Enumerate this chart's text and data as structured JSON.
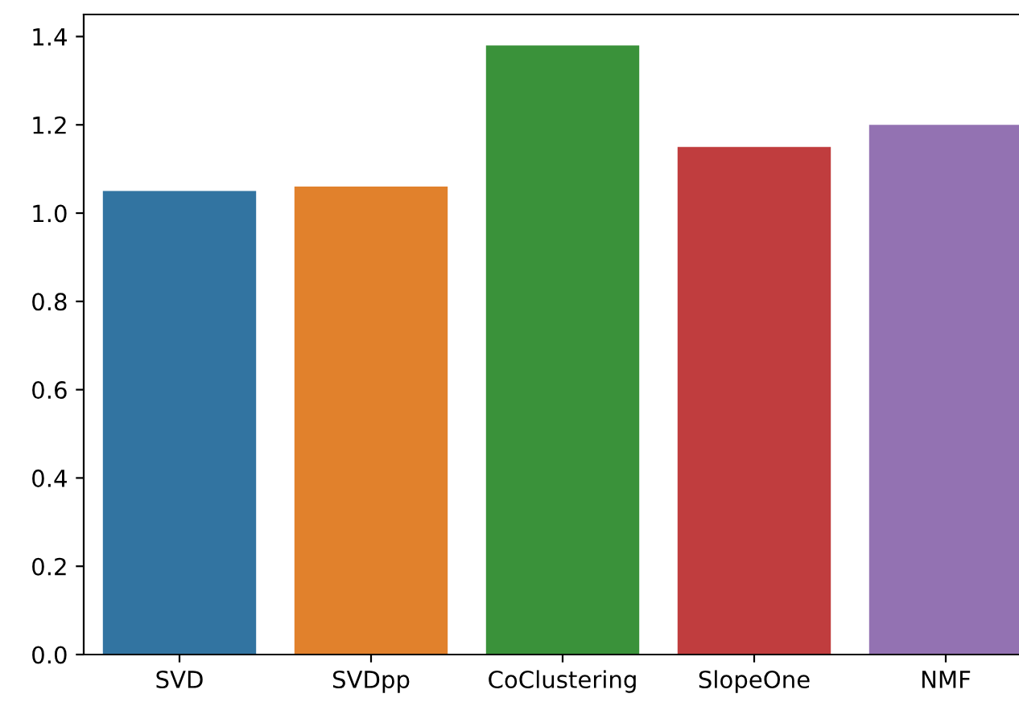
{
  "chart_data": {
    "type": "bar",
    "categories": [
      "SVD",
      "SVDpp",
      "CoClustering",
      "SlopeOne",
      "NMF"
    ],
    "values": [
      1.05,
      1.06,
      1.38,
      1.15,
      1.2
    ],
    "colors": [
      "#3274a1",
      "#e1812c",
      "#3a923a",
      "#c03d3e",
      "#9372b2"
    ],
    "ylim": [
      0,
      1.45
    ],
    "yticks": [
      {
        "value": 0,
        "label": "0.0"
      },
      0.2,
      0.4,
      0.6,
      0.8,
      {
        "value": 1,
        "label": "1.0"
      },
      1.2,
      1.4
    ],
    "grid": false,
    "legend": false
  }
}
